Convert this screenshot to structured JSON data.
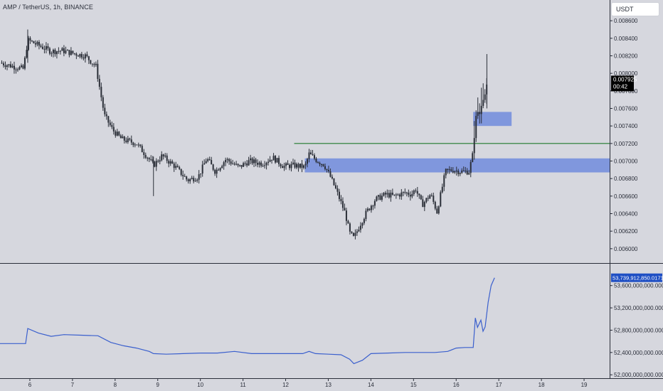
{
  "header": {
    "symbol_title": "AMP / TetherUS, 1h, BINANCE",
    "currency_button": "USDT"
  },
  "colors": {
    "background": "#d6d7de",
    "candle": "#2b2f38",
    "zone": "#7b93dc",
    "level_line": "#1e7a2c",
    "indicator_line": "#3a5fcd",
    "price_tag": "#000000",
    "indicator_tag": "#1f4fc4"
  },
  "chart_data": [
    {
      "type": "candlestick",
      "title": "AMP / TetherUS, 1h, BINANCE",
      "x_ticks": [
        "6",
        "7",
        "8",
        "9",
        "10",
        "11",
        "12",
        "13",
        "14",
        "15",
        "16",
        "17",
        "18",
        "19"
      ],
      "y_ticks": [
        "0.008600",
        "0.008400",
        "0.008200",
        "0.008000",
        "0.007800",
        "0.007600",
        "0.007400",
        "0.007200",
        "0.007000",
        "0.006800",
        "0.006600",
        "0.006400",
        "0.006200",
        "0.006000"
      ],
      "ylim": [
        0.00595,
        0.00865
      ],
      "xlim": [
        5.3,
        19.6
      ],
      "current_price": "0.007925",
      "countdown": "00:42",
      "series": [
        {
          "name": "price",
          "x": [
            5.3,
            5.6,
            5.85,
            5.95,
            6.2,
            6.5,
            6.75,
            7.0,
            7.3,
            7.55,
            7.75,
            7.95,
            8.15,
            8.5,
            8.8,
            8.9,
            9.1,
            9.4,
            9.7,
            9.95,
            10.15,
            10.35,
            10.6,
            10.9,
            11.15,
            11.45,
            11.7,
            11.95,
            12.2,
            12.45,
            12.55,
            12.75,
            12.9,
            13.05,
            13.2,
            13.4,
            13.5,
            13.6,
            13.75,
            13.9,
            14.1,
            14.35,
            14.55,
            14.8,
            14.95,
            15.05,
            15.2,
            15.4,
            15.55,
            15.75,
            15.9,
            16.1,
            16.3,
            16.4,
            16.45,
            16.55,
            16.65,
            16.75
          ],
          "y": [
            0.00812,
            0.00808,
            0.00805,
            0.00838,
            0.00832,
            0.00825,
            0.00826,
            0.00823,
            0.0082,
            0.00808,
            0.00752,
            0.00735,
            0.00725,
            0.0072,
            0.00702,
            0.00695,
            0.00706,
            0.00694,
            0.00678,
            0.00682,
            0.00703,
            0.00688,
            0.00702,
            0.00693,
            0.007,
            0.00697,
            0.00704,
            0.00694,
            0.00695,
            0.00693,
            0.00708,
            0.007,
            0.00696,
            0.00682,
            0.00665,
            0.0064,
            0.00618,
            0.00612,
            0.00628,
            0.00642,
            0.00656,
            0.00662,
            0.0066,
            0.00664,
            0.00662,
            0.00668,
            0.0065,
            0.00662,
            0.00642,
            0.00688,
            0.0069,
            0.00688,
            0.00688,
            0.0071,
            0.00748,
            0.00757,
            0.0077,
            0.00795
          ]
        }
      ],
      "zones": [
        {
          "y_from": 0.00687,
          "y_to": 0.00703,
          "x_from": 12.45,
          "x_to": 19.6
        },
        {
          "y_from": 0.0074,
          "y_to": 0.00756,
          "x_from": 16.4,
          "x_to": 17.3
        }
      ],
      "levels": [
        {
          "y": 0.0072,
          "x_from": 12.2,
          "x_to": 19.6
        }
      ]
    },
    {
      "type": "line",
      "y_ticks": [
        "53,600,000,000.000000",
        "53,200,000,000.000000",
        "52,800,000,000.000000",
        "52,400,000,000.000000",
        "52,000,000,000.000000"
      ],
      "ylim": [
        51990000000,
        53800000000
      ],
      "current_value": "53,739,912,850.017120",
      "series": [
        {
          "name": "indicator",
          "x": [
            5.3,
            5.7,
            5.9,
            5.95,
            6.2,
            6.5,
            6.8,
            7.2,
            7.6,
            7.9,
            8.2,
            8.5,
            8.8,
            8.9,
            9.2,
            9.6,
            10.0,
            10.4,
            10.8,
            11.2,
            11.6,
            12.0,
            12.4,
            12.55,
            12.7,
            13.0,
            13.3,
            13.5,
            13.6,
            13.8,
            14.0,
            14.4,
            14.8,
            15.2,
            15.5,
            15.8,
            16.0,
            16.2,
            16.4,
            16.45,
            16.5,
            16.58,
            16.63,
            16.68,
            16.75,
            16.82,
            16.9
          ],
          "y": [
            52560000000,
            52560000000,
            52560000000,
            52830000000,
            52750000000,
            52690000000,
            52720000000,
            52710000000,
            52700000000,
            52580000000,
            52520000000,
            52480000000,
            52420000000,
            52380000000,
            52370000000,
            52380000000,
            52390000000,
            52390000000,
            52420000000,
            52380000000,
            52380000000,
            52380000000,
            52380000000,
            52420000000,
            52380000000,
            52370000000,
            52360000000,
            52280000000,
            52200000000,
            52260000000,
            52380000000,
            52390000000,
            52400000000,
            52400000000,
            52400000000,
            52420000000,
            52480000000,
            52490000000,
            52490000000,
            53020000000,
            52850000000,
            52980000000,
            52780000000,
            52860000000,
            53300000000,
            53600000000,
            53740000000
          ]
        }
      ]
    }
  ]
}
